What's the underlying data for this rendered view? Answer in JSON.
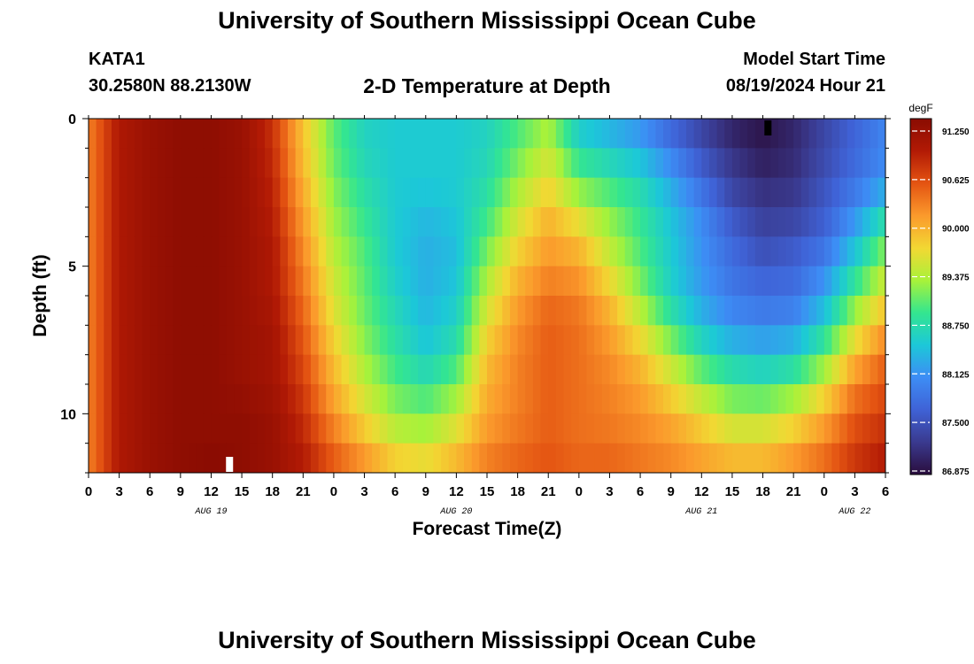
{
  "header": {
    "title": "University of Southern Mississippi Ocean Cube",
    "station": "KATA1",
    "coords": "30.2580N  88.2130W",
    "subtitle": "2-D Temperature at Depth",
    "model_start_label": "Model Start Time",
    "model_start_value": "08/19/2024 Hour 21"
  },
  "footer": {
    "title": "University of Southern Mississippi Ocean Cube"
  },
  "chart_data": {
    "type": "heatmap",
    "title": "2-D Temperature at Depth",
    "xlabel": "Forecast Time(Z)",
    "ylabel": "Depth (ft)",
    "x_ticks": [
      "0",
      "3",
      "6",
      "9",
      "12",
      "15",
      "18",
      "21",
      "0",
      "3",
      "6",
      "9",
      "12",
      "15",
      "18",
      "21",
      "0",
      "3",
      "6",
      "9",
      "12",
      "15",
      "18",
      "21",
      "0",
      "3",
      "6"
    ],
    "x_range_hours": [
      0,
      78
    ],
    "date_labels": [
      {
        "text": "AUG 19",
        "hour": 12
      },
      {
        "text": "AUG 20",
        "hour": 36
      },
      {
        "text": "AUG 21",
        "hour": 60
      },
      {
        "text": "AUG 22",
        "hour": 75
      }
    ],
    "y_ticks": [
      0,
      5,
      10
    ],
    "y_range": [
      0,
      12
    ],
    "y_inverted": true,
    "colorbar": {
      "unit": "degF",
      "min": 86.875,
      "max": 91.25,
      "ticks": [
        "91.250",
        "90.625",
        "90.000",
        "89.375",
        "88.750",
        "88.125",
        "87.500",
        "86.875"
      ],
      "colors": [
        "#2a0d3c",
        "#3a3a8f",
        "#3f62d6",
        "#3d8df5",
        "#1cc8d8",
        "#34e68f",
        "#a8f23a",
        "#f2d833",
        "#fb9a2c",
        "#e45412",
        "#b21a05",
        "#8a0c02"
      ]
    },
    "time_hours": [
      0,
      3,
      6,
      9,
      12,
      15,
      18,
      21,
      24,
      27,
      30,
      33,
      36,
      39,
      42,
      45,
      48,
      51,
      54,
      57,
      60,
      63,
      66,
      69,
      72,
      75,
      78
    ],
    "depths_ft": [
      0,
      1,
      2,
      3,
      4,
      5,
      6,
      7,
      8,
      9,
      10,
      11,
      12
    ],
    "temperature_degF": [
      [
        90.2,
        90.9,
        91.1,
        91.2,
        91.2,
        91.1,
        90.7,
        89.8,
        89.0,
        88.6,
        88.5,
        88.5,
        88.5,
        88.6,
        88.9,
        89.2,
        88.4,
        88.2,
        88.0,
        87.6,
        87.3,
        87.0,
        86.9,
        87.1,
        87.4,
        87.7,
        88.0
      ],
      [
        90.2,
        90.9,
        91.1,
        91.2,
        91.2,
        91.1,
        90.7,
        89.8,
        89.0,
        88.6,
        88.5,
        88.5,
        88.5,
        88.6,
        89.0,
        89.4,
        88.7,
        88.5,
        88.3,
        87.9,
        87.5,
        87.2,
        87.0,
        87.1,
        87.4,
        87.7,
        88.0
      ],
      [
        90.2,
        90.9,
        91.1,
        91.2,
        91.2,
        91.1,
        90.8,
        89.9,
        89.1,
        88.7,
        88.5,
        88.5,
        88.5,
        88.7,
        89.2,
        89.6,
        89.0,
        88.8,
        88.6,
        88.2,
        87.7,
        87.3,
        87.1,
        87.2,
        87.5,
        87.8,
        88.1
      ],
      [
        90.2,
        90.9,
        91.1,
        91.2,
        91.2,
        91.1,
        90.8,
        90.0,
        89.2,
        88.8,
        88.5,
        88.4,
        88.5,
        88.8,
        89.4,
        89.8,
        89.4,
        89.1,
        88.8,
        88.4,
        88.0,
        87.5,
        87.3,
        87.3,
        87.6,
        88.0,
        88.5
      ],
      [
        90.2,
        90.9,
        91.1,
        91.2,
        91.2,
        91.1,
        90.9,
        90.1,
        89.3,
        88.9,
        88.5,
        88.3,
        88.4,
        89.0,
        89.6,
        90.0,
        89.8,
        89.3,
        88.9,
        88.5,
        88.1,
        87.7,
        87.4,
        87.5,
        87.7,
        88.3,
        89.0
      ],
      [
        90.2,
        90.9,
        91.1,
        91.2,
        91.2,
        91.1,
        90.9,
        90.2,
        89.4,
        89.0,
        88.5,
        88.3,
        88.4,
        89.2,
        89.8,
        90.1,
        90.0,
        89.5,
        89.0,
        88.5,
        88.1,
        87.8,
        87.6,
        87.7,
        88.0,
        88.6,
        89.3
      ],
      [
        90.2,
        90.9,
        91.1,
        91.2,
        91.2,
        91.1,
        90.9,
        90.3,
        89.5,
        89.0,
        88.6,
        88.3,
        88.5,
        89.4,
        90.0,
        90.3,
        90.2,
        89.8,
        89.2,
        88.6,
        88.2,
        87.9,
        87.8,
        87.8,
        88.2,
        89.0,
        89.6
      ],
      [
        90.2,
        90.9,
        91.1,
        91.2,
        91.2,
        91.1,
        91.0,
        90.4,
        89.6,
        89.1,
        88.7,
        88.4,
        88.6,
        89.6,
        90.1,
        90.4,
        90.3,
        90.0,
        89.5,
        88.9,
        88.4,
        88.1,
        88.0,
        88.1,
        88.6,
        89.4,
        90.0
      ],
      [
        90.2,
        90.9,
        91.1,
        91.2,
        91.2,
        91.1,
        91.0,
        90.5,
        89.8,
        89.2,
        88.8,
        88.5,
        88.8,
        89.8,
        90.2,
        90.4,
        90.3,
        90.1,
        89.8,
        89.3,
        88.8,
        88.5,
        88.4,
        88.5,
        89.0,
        89.8,
        90.3
      ],
      [
        90.2,
        90.9,
        91.1,
        91.2,
        91.2,
        91.1,
        91.0,
        90.6,
        89.9,
        89.4,
        89.0,
        88.8,
        89.1,
        89.9,
        90.2,
        90.4,
        90.3,
        90.2,
        90.0,
        89.6,
        89.2,
        88.9,
        88.8,
        89.0,
        89.5,
        90.2,
        90.5
      ],
      [
        90.2,
        90.9,
        91.1,
        91.2,
        91.2,
        91.2,
        91.1,
        90.7,
        90.1,
        89.6,
        89.2,
        89.1,
        89.4,
        90.0,
        90.2,
        90.4,
        90.3,
        90.2,
        90.1,
        89.9,
        89.6,
        89.3,
        89.3,
        89.5,
        89.9,
        90.4,
        90.6
      ],
      [
        90.2,
        90.9,
        91.1,
        91.2,
        91.2,
        91.2,
        91.1,
        90.8,
        90.3,
        89.9,
        89.5,
        89.4,
        89.7,
        90.1,
        90.3,
        90.4,
        90.3,
        90.3,
        90.2,
        90.1,
        89.9,
        89.7,
        89.7,
        89.9,
        90.2,
        90.6,
        90.8
      ],
      [
        90.2,
        90.9,
        91.1,
        91.2,
        91.3,
        91.2,
        91.1,
        90.9,
        90.5,
        90.2,
        89.9,
        89.8,
        90.0,
        90.3,
        90.4,
        90.5,
        90.4,
        90.4,
        90.3,
        90.2,
        90.1,
        90.0,
        90.0,
        90.2,
        90.4,
        90.7,
        90.9
      ]
    ],
    "markers": [
      {
        "hour": 66.5,
        "depth_ft": 0.3,
        "color": "#000000"
      },
      {
        "hour": 13.8,
        "depth_ft": 11.7,
        "color": "#ffffff"
      }
    ],
    "grid": false
  }
}
